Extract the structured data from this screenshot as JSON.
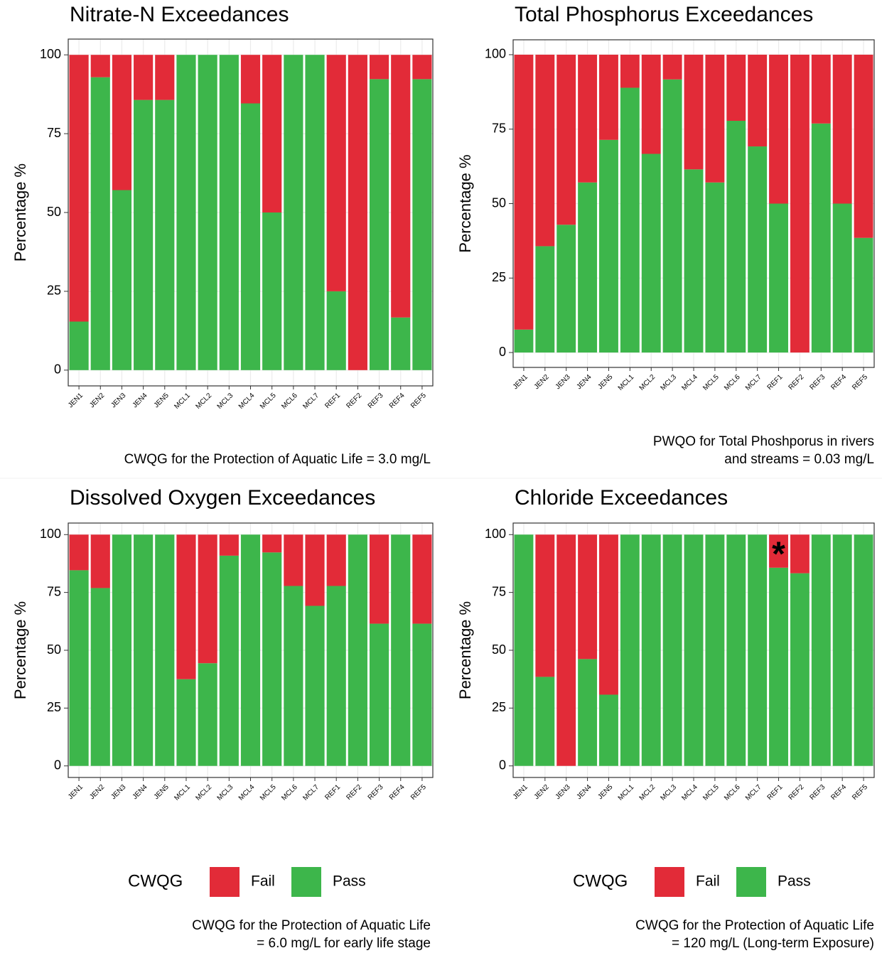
{
  "chart_data": [
    {
      "type": "bar",
      "stacked": true,
      "title": "Nitrate-N Exceedances",
      "ylabel": "Percentage %",
      "categories": [
        "JEN1",
        "JEN2",
        "JEN3",
        "JEN4",
        "JEN5",
        "MCL1",
        "MCL2",
        "MCL3",
        "MCL4",
        "MCL5",
        "MCL6",
        "MCL7",
        "REF1",
        "REF2",
        "REF3",
        "REF4",
        "REF5"
      ],
      "series": [
        {
          "name": "Fail",
          "color": "#e22b38",
          "values": [
            84.6,
            7.1,
            42.9,
            14.3,
            14.3,
            0,
            0,
            0,
            15.4,
            50,
            0,
            0,
            75,
            100,
            7.7,
            83.3,
            7.7
          ]
        },
        {
          "name": "Pass",
          "color": "#3db64b",
          "values": [
            15.4,
            92.9,
            57.1,
            85.7,
            85.7,
            100,
            100,
            100,
            84.6,
            50,
            100,
            100,
            25,
            0,
            92.3,
            16.7,
            92.3
          ]
        }
      ],
      "ylim": [
        -5,
        105
      ],
      "yticks": [
        0,
        25,
        50,
        75,
        100
      ],
      "grid": true,
      "caption": [
        "CWQG for the Protection of Aquatic Life = 3.0 mg/L"
      ]
    },
    {
      "type": "bar",
      "stacked": true,
      "title": "Total Phosphorus Exceedances",
      "ylabel": "Percentage %",
      "categories": [
        "JEN1",
        "JEN2",
        "JEN3",
        "JEN4",
        "JEN5",
        "MCL1",
        "MCL2",
        "MCL3",
        "MCL4",
        "MCL5",
        "MCL6",
        "MCL7",
        "REF1",
        "REF2",
        "REF3",
        "REF4",
        "REF5"
      ],
      "series": [
        {
          "name": "Fail",
          "color": "#e22b38",
          "values": [
            92.3,
            64.3,
            57.1,
            42.9,
            28.6,
            11.1,
            33.3,
            8.3,
            38.5,
            42.9,
            22.2,
            30.8,
            50,
            100,
            23.1,
            50,
            61.5
          ]
        },
        {
          "name": "Pass",
          "color": "#3db64b",
          "values": [
            7.7,
            35.7,
            42.9,
            57.1,
            71.4,
            88.9,
            66.7,
            91.7,
            61.5,
            57.1,
            77.8,
            69.2,
            50,
            0,
            76.9,
            50,
            38.5
          ]
        }
      ],
      "ylim": [
        -5,
        105
      ],
      "yticks": [
        0,
        25,
        50,
        75,
        100
      ],
      "grid": true,
      "caption": [
        "PWQO for Total Phoshporus in rivers",
        "and streams = 0.03 mg/L"
      ]
    },
    {
      "type": "bar",
      "stacked": true,
      "title": "Dissolved Oxygen Exceedances",
      "ylabel": "Percentage %",
      "categories": [
        "JEN1",
        "JEN2",
        "JEN3",
        "JEN4",
        "JEN5",
        "MCL1",
        "MCL2",
        "MCL3",
        "MCL4",
        "MCL5",
        "MCL6",
        "MCL7",
        "REF1",
        "REF2",
        "REF3",
        "REF4",
        "REF5"
      ],
      "series": [
        {
          "name": "Fail",
          "color": "#e22b38",
          "values": [
            15.4,
            23.1,
            0,
            0,
            0,
            62.5,
            55.6,
            9.1,
            0,
            7.7,
            22.2,
            30.8,
            22.2,
            0,
            38.5,
            0,
            38.5
          ]
        },
        {
          "name": "Pass",
          "color": "#3db64b",
          "values": [
            84.6,
            76.9,
            100,
            100,
            100,
            37.5,
            44.4,
            90.9,
            100,
            92.3,
            77.8,
            69.2,
            77.8,
            100,
            61.5,
            100,
            61.5
          ]
        }
      ],
      "ylim": [
        -5,
        105
      ],
      "yticks": [
        0,
        25,
        50,
        75,
        100
      ],
      "grid": true,
      "legend": "bottom",
      "legend_title": "CWQG",
      "caption": [
        "CWQG for the Protection of Aquatic Life",
        "= 6.0 mg/L for early life stage"
      ]
    },
    {
      "type": "bar",
      "stacked": true,
      "title": "Chloride Exceedances",
      "ylabel": "Percentage %",
      "categories": [
        "JEN1",
        "JEN2",
        "JEN3",
        "JEN4",
        "JEN5",
        "MCL1",
        "MCL2",
        "MCL3",
        "MCL4",
        "MCL5",
        "MCL6",
        "MCL7",
        "REF1",
        "REF2",
        "REF3",
        "REF4",
        "REF5"
      ],
      "series": [
        {
          "name": "Fail",
          "color": "#e22b38",
          "values": [
            0,
            61.5,
            100,
            53.8,
            69.2,
            0,
            0,
            0,
            0,
            0,
            0,
            0,
            14.3,
            16.7,
            0,
            0,
            0
          ]
        },
        {
          "name": "Pass",
          "color": "#3db64b",
          "values": [
            100,
            38.5,
            0,
            46.2,
            30.8,
            100,
            100,
            100,
            100,
            100,
            100,
            100,
            85.7,
            83.3,
            100,
            100,
            100
          ]
        }
      ],
      "ylim": [
        -5,
        105
      ],
      "yticks": [
        0,
        25,
        50,
        75,
        100
      ],
      "grid": true,
      "legend": "bottom",
      "legend_title": "CWQG",
      "annotations": [
        {
          "text": "*",
          "x": "REF1",
          "y": 93
        }
      ],
      "caption": [
        "CWQG for the Protection of Aquatic Life",
        "= 120 mg/L (Long-term Exposure)"
      ]
    }
  ]
}
